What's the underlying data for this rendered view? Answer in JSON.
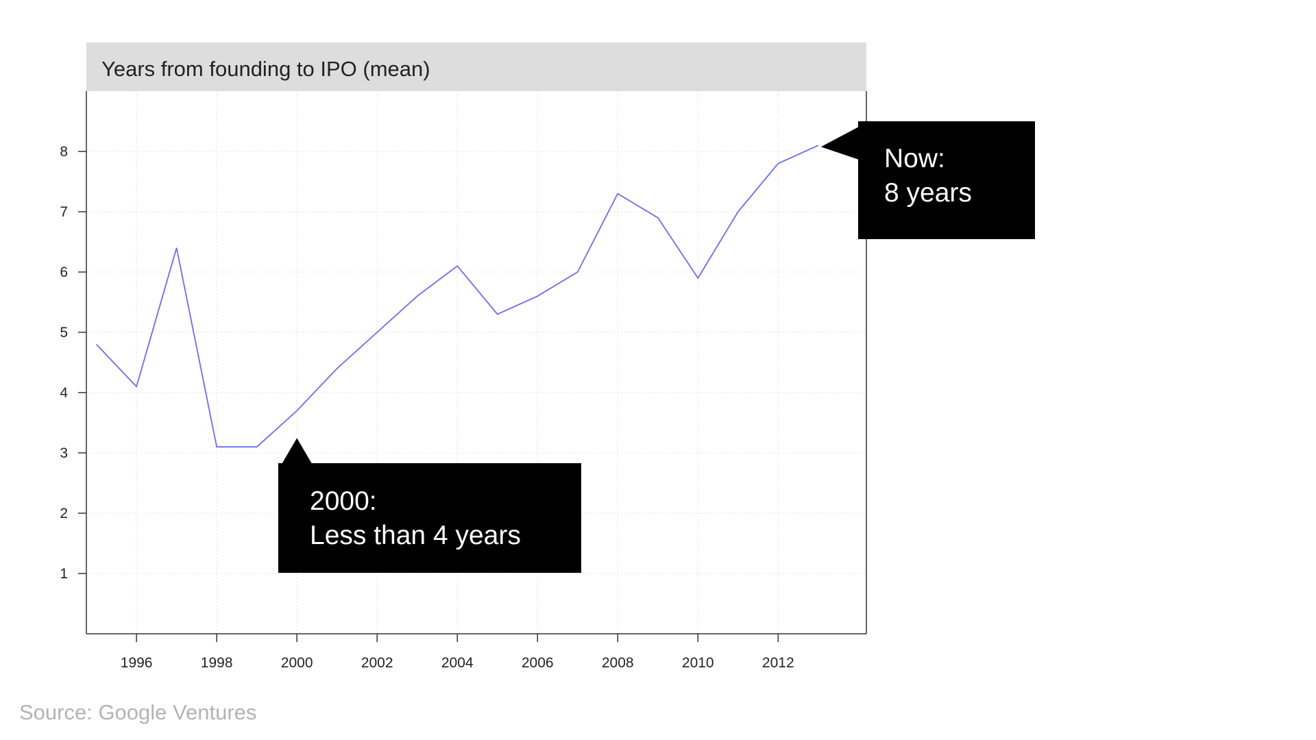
{
  "chart_data": {
    "type": "line",
    "title": "Years from founding to IPO (mean)",
    "xlabel": "",
    "ylabel": "",
    "x": [
      1995,
      1996,
      1997,
      1998,
      1999,
      2000,
      2001,
      2002,
      2003,
      2004,
      2005,
      2006,
      2007,
      2008,
      2009,
      2010,
      2011,
      2012,
      2013
    ],
    "series": [
      {
        "values": [
          4.8,
          4.1,
          6.4,
          3.1,
          3.1,
          3.7,
          4.4,
          5.0,
          5.6,
          6.1,
          5.3,
          5.6,
          6.0,
          7.3,
          6.9,
          5.9,
          7.0,
          7.8,
          8.1
        ],
        "color": "#6b6bf5"
      }
    ],
    "xlim": [
      1994.75,
      2014.2
    ],
    "ylim": [
      0,
      9
    ],
    "x_ticks": [
      "1996",
      "1998",
      "2000",
      "2002",
      "2004",
      "2006",
      "2008",
      "2010",
      "2012"
    ],
    "y_ticks": [
      "1",
      "2",
      "3",
      "4",
      "5",
      "6",
      "7",
      "8"
    ],
    "grid": true,
    "legend": "none",
    "annotations": [
      {
        "line1": "2000:",
        "line2": "Less than 4 years",
        "points_to": {
          "x": 2000,
          "y": 3.7
        }
      },
      {
        "line1": "Now:",
        "line2": "8 years",
        "points_to": {
          "x": 2013,
          "y": 8.1
        }
      }
    ],
    "title_bar_color": "#dddddd"
  },
  "source": "Source: Google Ventures"
}
